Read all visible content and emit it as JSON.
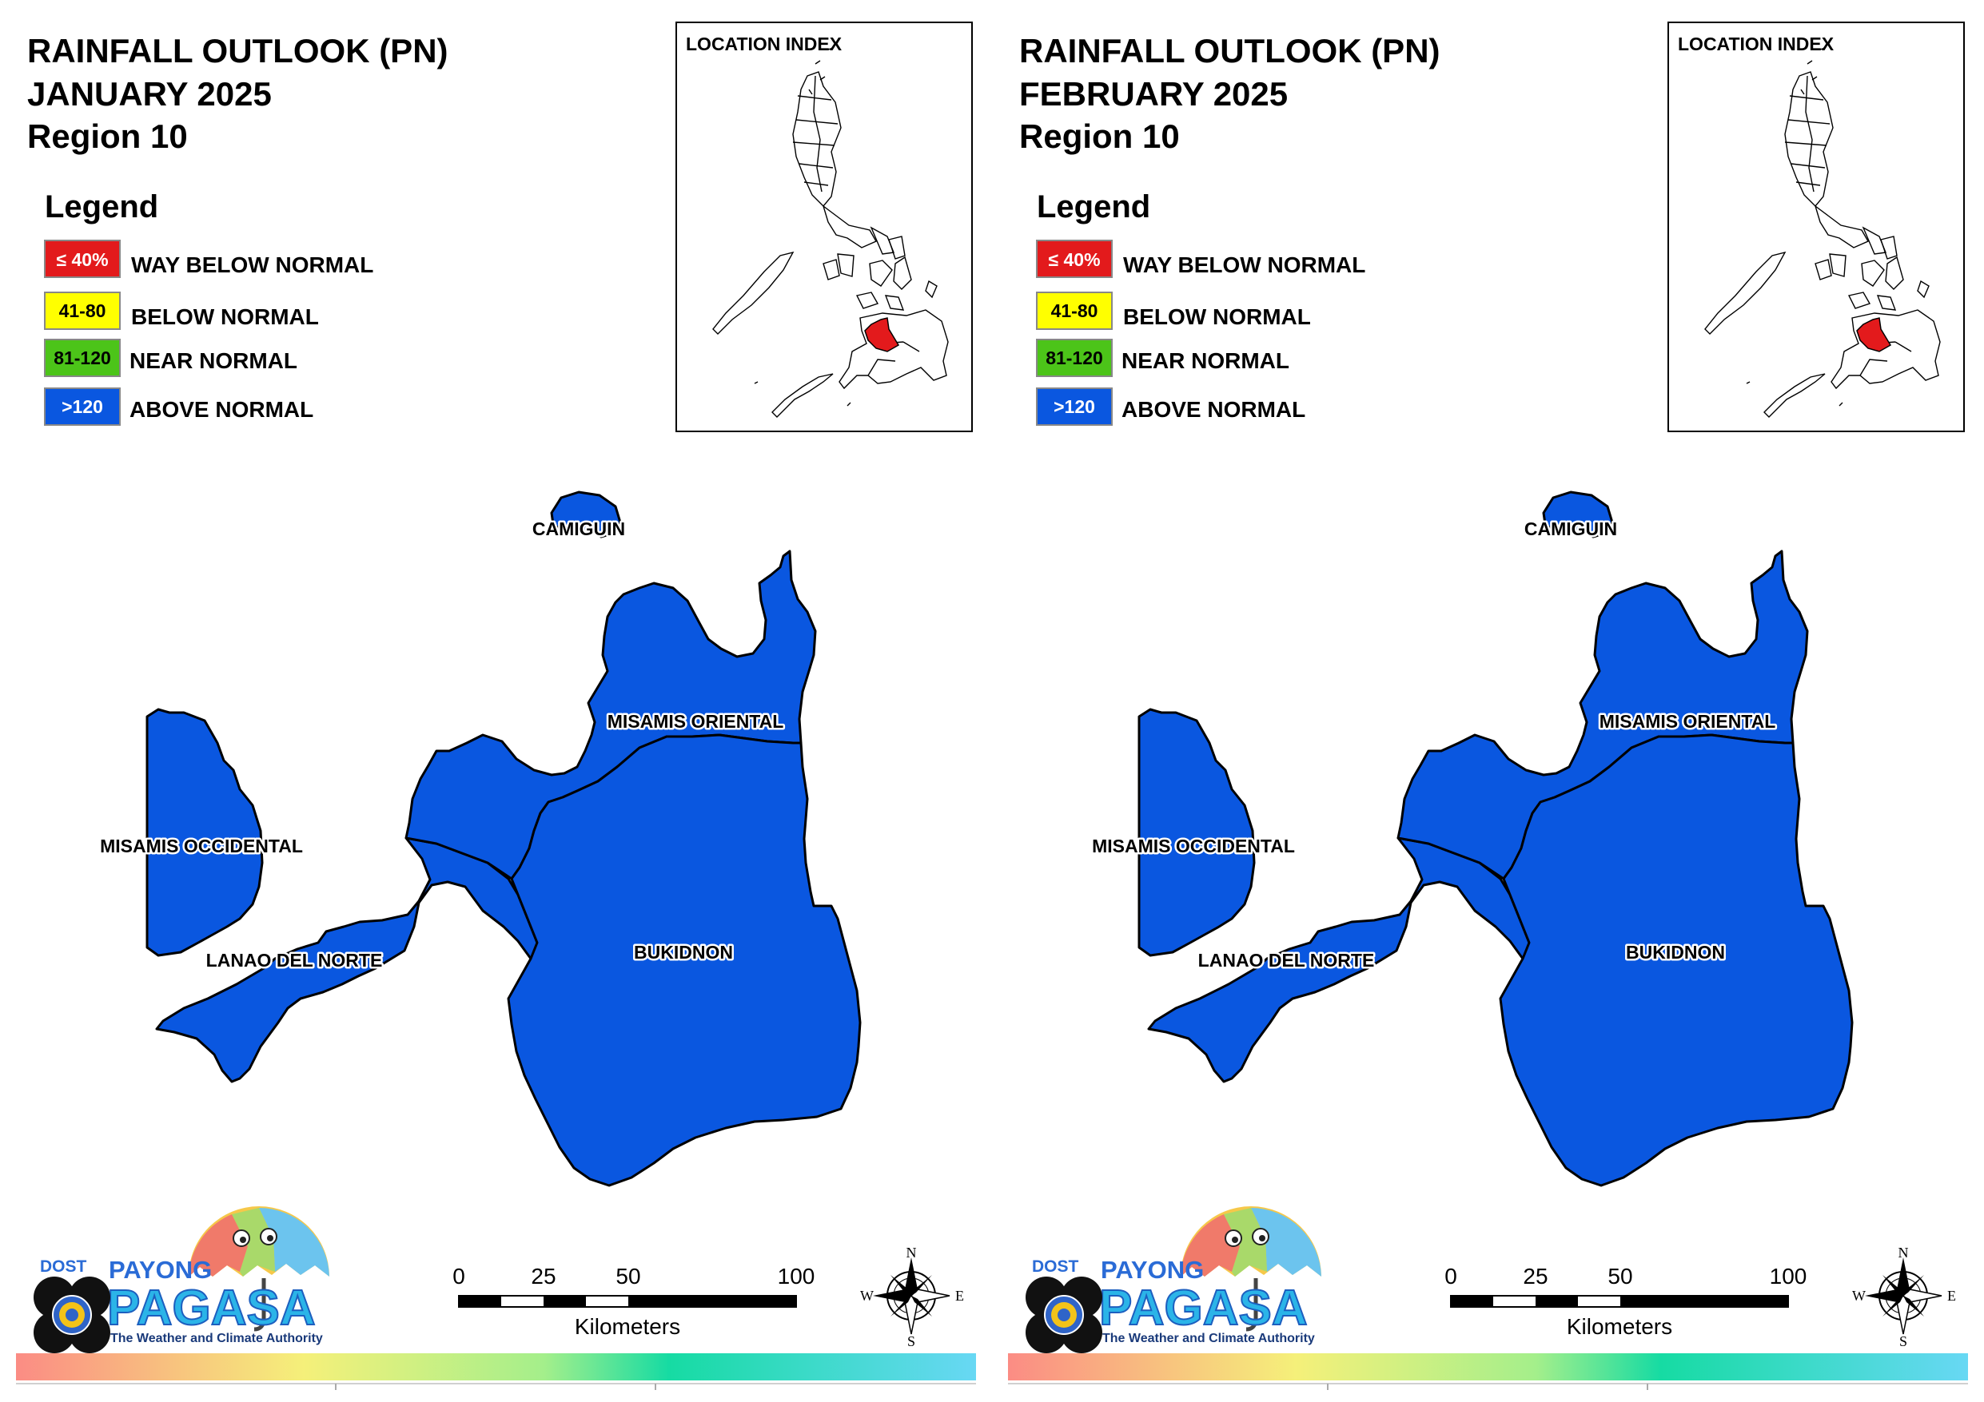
{
  "legend_title": "Legend",
  "legend": [
    {
      "code": "≤ 40%",
      "label": "WAY BELOW NORMAL",
      "color": "#e31a1c",
      "text_color": "#ffffff"
    },
    {
      "code": "41-80",
      "label": "BELOW NORMAL",
      "color": "#ffff00",
      "text_color": "#000000"
    },
    {
      "code": "81-120",
      "label": "NEAR NORMAL",
      "color": "#4cc419",
      "text_color": "#000000"
    },
    {
      "code": ">120",
      "label": "ABOVE NORMAL",
      "color": "#0a57e0",
      "text_color": "#ffffff"
    }
  ],
  "location_index_title": "LOCATION INDEX",
  "province_labels": {
    "camiguin": "CAMIGUIN",
    "misamis_oriental": "MISAMIS ORIENTAL",
    "misamis_occidental": "MISAMIS OCCIDENTAL",
    "lanao_del_norte": "LANAO DEL NORTE",
    "bukidnon": "BUKIDNON"
  },
  "scale_bar": {
    "ticks": [
      "0",
      "25",
      "50",
      "100"
    ],
    "unit": "Kilometers"
  },
  "compass": {
    "n": "N",
    "s": "S",
    "e": "E",
    "w": "W"
  },
  "logo": {
    "dost": "DOST",
    "payong": "PAYONG",
    "pagasa": "PAGASA",
    "tagline": "The Weather and Climate Authority"
  },
  "panels": [
    {
      "title": "RAINFALL OUTLOOK (PN)",
      "period": "JANUARY 2025",
      "region": "Region 10",
      "provinces": {
        "camiguin": "ABOVE NORMAL",
        "misamis_oriental": "ABOVE NORMAL",
        "misamis_occidental": "ABOVE NORMAL",
        "lanao_del_norte": "ABOVE NORMAL",
        "bukidnon": "ABOVE NORMAL"
      }
    },
    {
      "title": "RAINFALL OUTLOOK (PN)",
      "period": "FEBRUARY 2025",
      "region": "Region 10",
      "provinces": {
        "camiguin": "ABOVE NORMAL",
        "misamis_oriental": "ABOVE NORMAL",
        "misamis_occidental": "ABOVE NORMAL",
        "lanao_del_norte": "ABOVE NORMAL",
        "bukidnon": "ABOVE NORMAL"
      }
    }
  ],
  "colors": {
    "map_fill": "#0a57e0",
    "highlight": "#e31a1c"
  }
}
